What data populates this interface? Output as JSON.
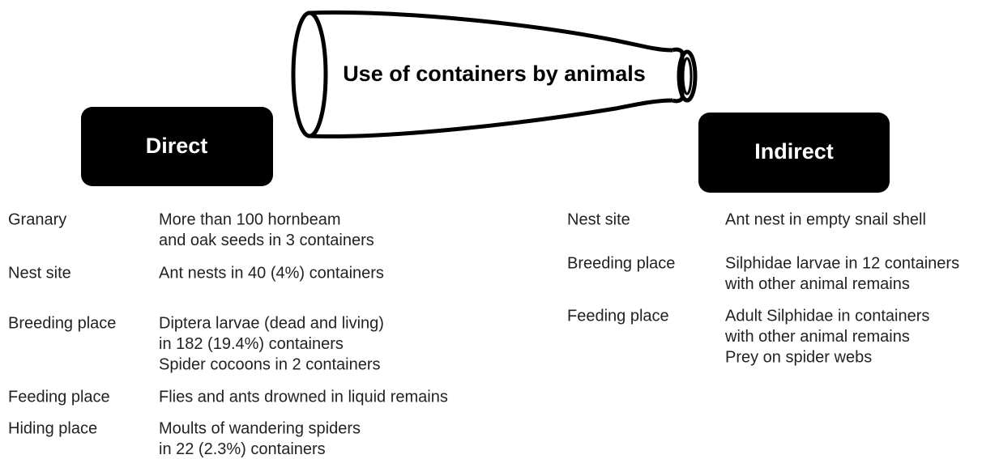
{
  "title": "Use of containers by animals",
  "direct": {
    "header": "Direct",
    "rows": [
      {
        "label": "Granary",
        "lines": [
          "More than 100 hornbeam",
          "and oak seeds in 3 containers"
        ]
      },
      {
        "label": "Nest site",
        "lines": [
          "Ant nests in 40 (4%) containers"
        ]
      },
      {
        "label": "Breeding place",
        "lines": [
          "Diptera larvae (dead and living)",
          "in 182 (19.4%) containers",
          "Spider cocoons in 2 containers"
        ]
      },
      {
        "label": "Feeding place",
        "lines": [
          "Flies and ants drowned in liquid remains"
        ]
      },
      {
        "label": "Hiding place",
        "lines": [
          "Moults of wandering spiders",
          "in 22 (2.3%) containers"
        ]
      }
    ]
  },
  "indirect": {
    "header": "Indirect",
    "rows": [
      {
        "label": "Nest site",
        "lines": [
          "Ant nest in empty snail shell"
        ]
      },
      {
        "label": "Breeding place",
        "lines": [
          "Silphidae larvae in 12 containers",
          "with other animal remains"
        ]
      },
      {
        "label": "Feeding place",
        "lines": [
          "Adult Silphidae in containers",
          "with other animal remains",
          "Prey on spider webs"
        ]
      }
    ]
  }
}
